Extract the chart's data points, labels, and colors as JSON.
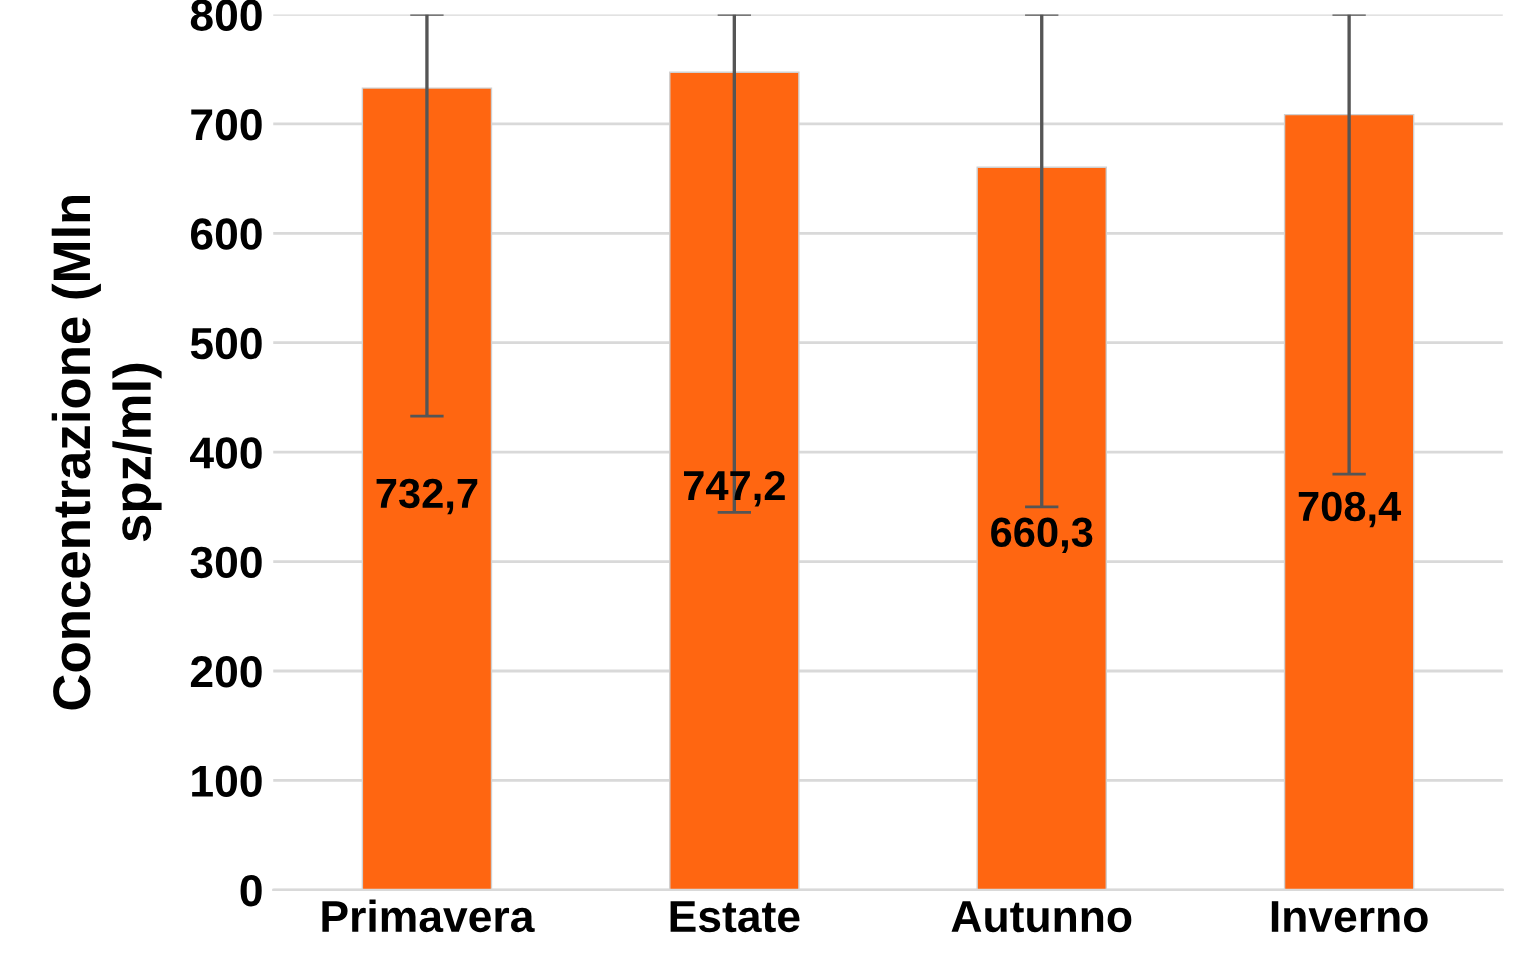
{
  "chart_data": {
    "type": "bar",
    "ylabel": "Concentrazione (Mln\nspz/ml)",
    "categories": [
      "Primavera",
      "Estate",
      "Autunno",
      "Inverno"
    ],
    "values": [
      732.7,
      747.2,
      660.3,
      708.4
    ],
    "value_labels": [
      "732,7",
      "747,2",
      "660,3",
      "708,4"
    ],
    "errors": [
      [
        433,
        800
      ],
      [
        345,
        800
      ],
      [
        350,
        800
      ],
      [
        380,
        800
      ]
    ],
    "color": "#ff6611",
    "ylim": [
      0,
      800
    ],
    "yticks": [
      0,
      100,
      200,
      300,
      400,
      500,
      600,
      700,
      800
    ],
    "grid": "y"
  }
}
